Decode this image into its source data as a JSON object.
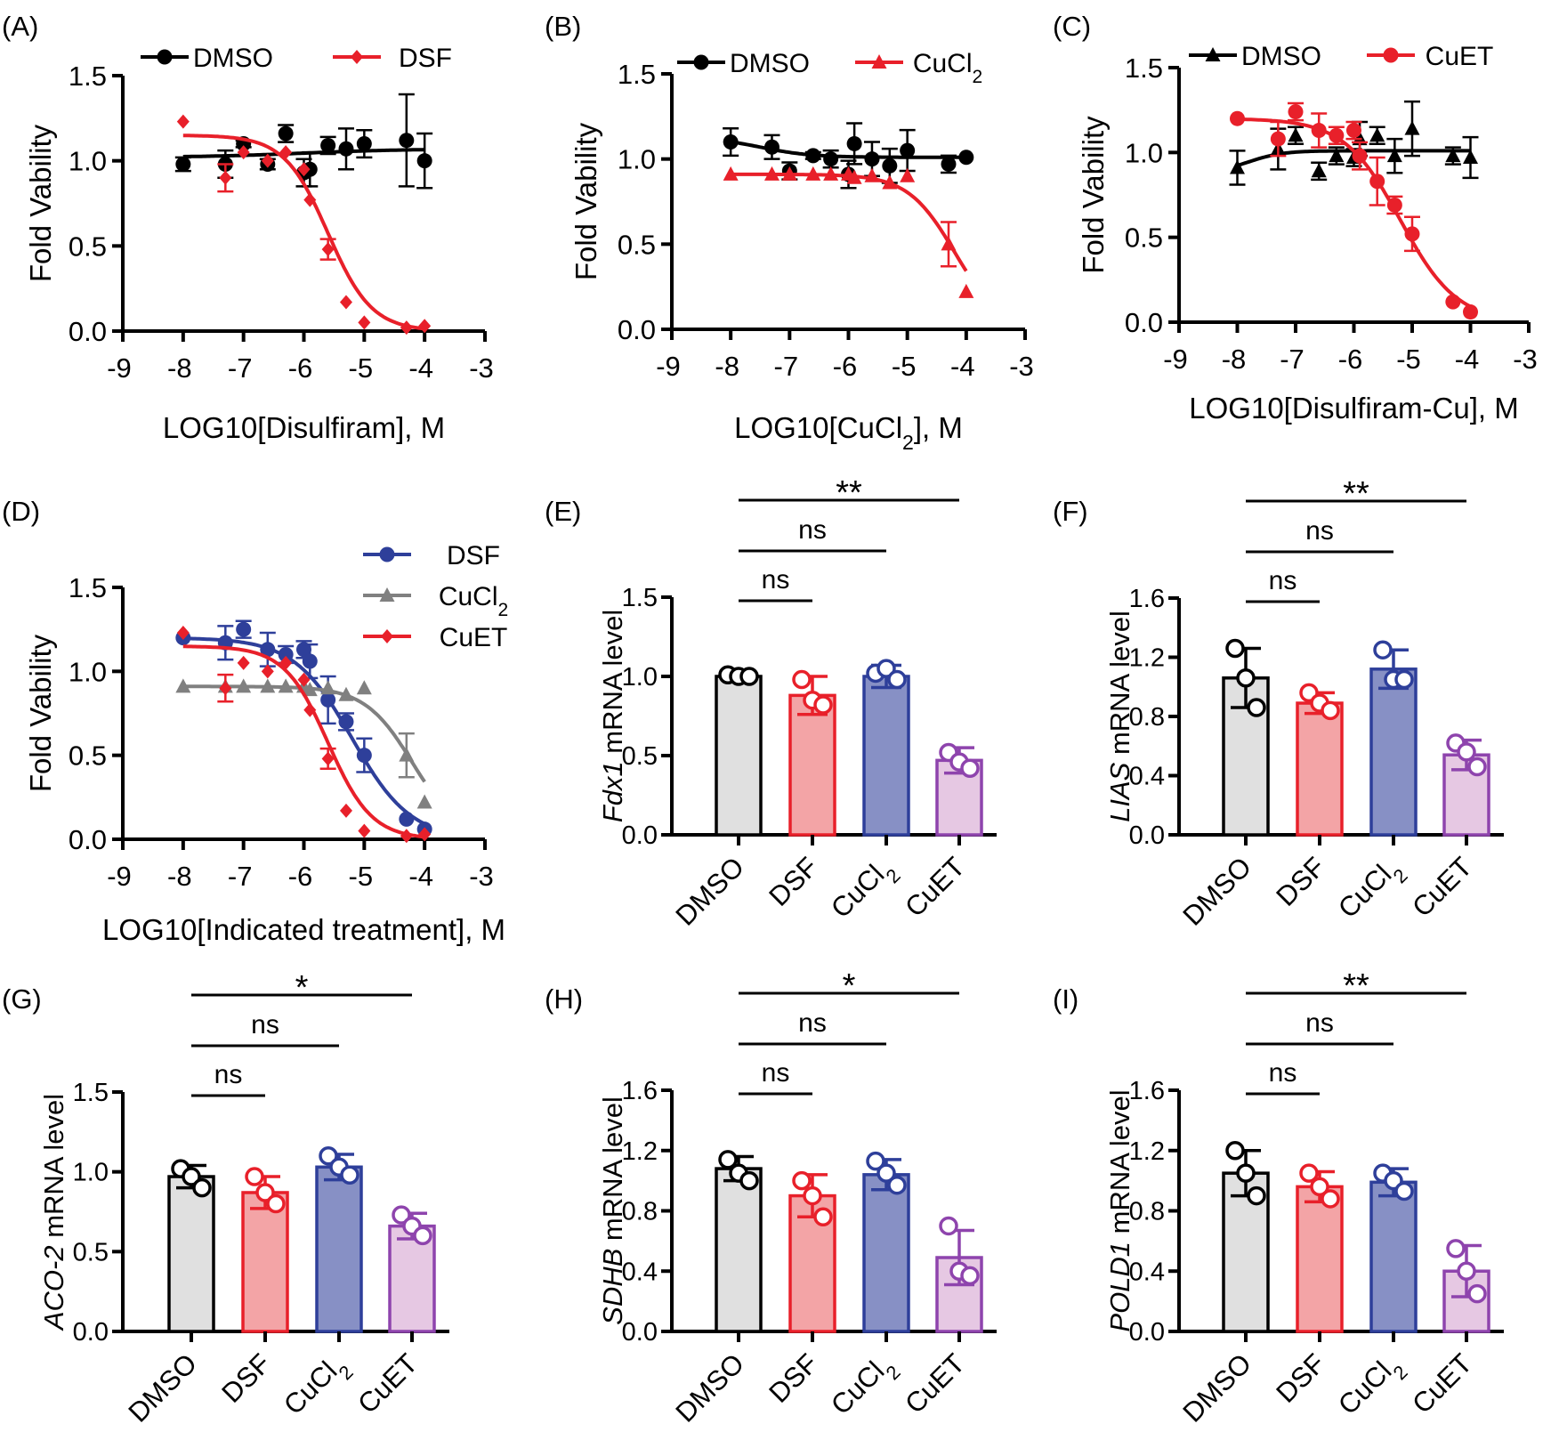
{
  "colors": {
    "black": "#000000",
    "red": "#e8202a",
    "blue": "#2e3f9a",
    "gray": "#808080",
    "purple": "#8e44ad"
  },
  "chart_data": [
    {
      "panel": "(A)",
      "type": "scatter",
      "xlabel": "LOG10[Disulfiram], M",
      "ylabel": "Fold Vability",
      "xlim": [
        -9,
        -3
      ],
      "ylim": [
        0,
        1.5
      ],
      "xticks": [
        "-9",
        "-8",
        "-7",
        "-6",
        "-5",
        "-4",
        "-3"
      ],
      "yticks": [
        "0.0",
        "0.5",
        "1.0",
        "1.5"
      ],
      "series": [
        {
          "name": "DMSO",
          "color": "black",
          "marker": "circle",
          "x": [
            -8,
            -7.3,
            -7,
            -6.6,
            -6.3,
            -6,
            -5.9,
            -5.6,
            -5.3,
            -5,
            -4.3,
            -4
          ],
          "y": [
            0.98,
            0.98,
            1.1,
            0.98,
            1.16,
            0.93,
            0.95,
            1.09,
            1.07,
            1.1,
            1.12,
            1.0
          ],
          "err": [
            0.04,
            0.08,
            0.02,
            0.03,
            0.05,
            0.08,
            0.1,
            0.05,
            0.12,
            0.08,
            0.27,
            0.16
          ],
          "fit": {
            "top": 1.02,
            "bottom": 1.07,
            "ec50": -6,
            "hill": 0.5
          }
        },
        {
          "name": "DSF",
          "color": "red",
          "marker": "diamond",
          "x": [
            -8,
            -7.3,
            -7,
            -6.6,
            -6.3,
            -6,
            -5.9,
            -5.6,
            -5.3,
            -5,
            -4.3,
            -4
          ],
          "y": [
            1.23,
            0.9,
            1.05,
            1.0,
            1.05,
            0.95,
            0.77,
            0.48,
            0.17,
            0.05,
            0.02,
            0.03
          ],
          "err": [
            0,
            0.08,
            0,
            0,
            0,
            0,
            0,
            0.06,
            0,
            0,
            0,
            0
          ],
          "fit": {
            "top": 1.15,
            "bottom": 0,
            "ec50": -5.6,
            "hill": 1.2
          }
        }
      ]
    },
    {
      "panel": "(B)",
      "type": "scatter",
      "xlabel": "LOG10[CuCl₂], M",
      "ylabel": "Fold Vability",
      "xlim": [
        -9,
        -3
      ],
      "ylim": [
        0,
        1.5
      ],
      "xticks": [
        "-9",
        "-8",
        "-7",
        "-6",
        "-5",
        "-4",
        "-3"
      ],
      "yticks": [
        "0.0",
        "0.5",
        "1.0",
        "1.5"
      ],
      "series": [
        {
          "name": "DMSO",
          "color": "black",
          "marker": "circle",
          "x": [
            -8,
            -7.3,
            -7,
            -6.6,
            -6.3,
            -6,
            -5.9,
            -5.6,
            -5.3,
            -5,
            -4.3,
            -4
          ],
          "y": [
            1.1,
            1.07,
            0.93,
            1.02,
            1.0,
            0.91,
            1.09,
            1.0,
            0.96,
            1.05,
            0.97,
            1.01
          ],
          "err": [
            0.08,
            0.07,
            0.05,
            0.02,
            0.05,
            0.08,
            0.12,
            0.1,
            0.1,
            0.12,
            0.05,
            0
          ],
          "fit": {
            "top": 1.13,
            "bottom": 1.01,
            "ec50": -7.5,
            "hill": 1.0
          }
        },
        {
          "name": "CuCl₂",
          "color": "red",
          "marker": "triangle",
          "x": [
            -8,
            -7.3,
            -7,
            -6.6,
            -6.3,
            -6,
            -5.9,
            -5.6,
            -5.3,
            -5,
            -4.3,
            -4
          ],
          "y": [
            0.91,
            0.91,
            0.91,
            0.91,
            0.91,
            0.91,
            0.89,
            0.9,
            0.86,
            0.9,
            0.5,
            0.22
          ],
          "err": [
            0,
            0,
            0,
            0,
            0,
            0,
            0,
            0,
            0,
            0,
            0.13,
            0
          ],
          "fit": {
            "top": 0.91,
            "bottom": 0,
            "ec50": -4.2,
            "hill": 1.1
          }
        }
      ]
    },
    {
      "panel": "(C)",
      "type": "scatter",
      "xlabel": "LOG10[Disulfiram-Cu], M",
      "ylabel": "Fold Vability",
      "xlim": [
        -9,
        -3
      ],
      "ylim": [
        0,
        1.5
      ],
      "xticks": [
        "-9",
        "-8",
        "-7",
        "-6",
        "-5",
        "-4",
        "-3"
      ],
      "yticks": [
        "0.0",
        "0.5",
        "1.0",
        "1.5"
      ],
      "series": [
        {
          "name": "DMSO",
          "color": "black",
          "marker": "triangle",
          "x": [
            -8,
            -7.3,
            -7,
            -6.6,
            -6.3,
            -6,
            -5.9,
            -5.6,
            -5.3,
            -5,
            -4.3,
            -4
          ],
          "y": [
            0.91,
            1.02,
            1.1,
            0.89,
            0.98,
            0.97,
            1.08,
            1.1,
            0.98,
            1.14,
            0.98,
            0.97
          ],
          "err": [
            0.1,
            0.12,
            0.05,
            0.05,
            0.05,
            0.05,
            0.1,
            0.05,
            0.1,
            0.16,
            0.05,
            0.12
          ],
          "fit": {
            "top": 0.88,
            "bottom": 1.01,
            "ec50": -7.8,
            "hill": 1.5
          }
        },
        {
          "name": "CuET",
          "color": "red",
          "marker": "circle",
          "x": [
            -8,
            -7.3,
            -7,
            -6.6,
            -6.3,
            -6,
            -5.9,
            -5.6,
            -5.3,
            -5,
            -4.3,
            -4
          ],
          "y": [
            1.2,
            1.08,
            1.24,
            1.13,
            1.1,
            1.13,
            0.98,
            0.83,
            0.69,
            0.52,
            0.12,
            0.06
          ],
          "err": [
            0,
            0.1,
            0.05,
            0.1,
            0.05,
            0.05,
            0.08,
            0.14,
            0.05,
            0.1,
            0,
            0
          ],
          "fit": {
            "top": 1.2,
            "bottom": 0,
            "ec50": -5.2,
            "hill": 0.9
          }
        }
      ]
    },
    {
      "panel": "(D)",
      "type": "scatter",
      "xlabel": "LOG10[Indicated treatment], M",
      "ylabel": "Fold Vability",
      "xlim": [
        -9,
        -3
      ],
      "ylim": [
        0,
        1.5
      ],
      "xticks": [
        "-9",
        "-8",
        "-7",
        "-6",
        "-5",
        "-4",
        "-3"
      ],
      "yticks": [
        "0.0",
        "0.5",
        "1.0",
        "1.5"
      ],
      "series": [
        {
          "name": "DSF",
          "color": "blue",
          "marker": "circle",
          "x": [
            -8,
            -7.3,
            -7,
            -6.6,
            -6.3,
            -6,
            -5.9,
            -5.6,
            -5.3,
            -5,
            -4.3,
            -4
          ],
          "y": [
            1.2,
            1.17,
            1.25,
            1.13,
            1.1,
            1.13,
            1.06,
            0.83,
            0.7,
            0.5,
            0.12,
            0.06
          ],
          "err": [
            0,
            0.1,
            0.05,
            0.1,
            0.05,
            0.05,
            0.1,
            0.14,
            0.05,
            0.1,
            0,
            0
          ],
          "fit": {
            "top": 1.2,
            "bottom": 0,
            "ec50": -5.2,
            "hill": 0.9
          }
        },
        {
          "name": "CuCl₂",
          "color": "gray",
          "marker": "triangle",
          "x": [
            -8,
            -7.3,
            -7,
            -6.6,
            -6.3,
            -6,
            -5.9,
            -5.6,
            -5.3,
            -5,
            -4.3,
            -4
          ],
          "y": [
            0.91,
            0.91,
            0.91,
            0.91,
            0.91,
            0.91,
            0.89,
            0.9,
            0.86,
            0.9,
            0.5,
            0.22
          ],
          "err": [
            0,
            0,
            0,
            0,
            0,
            0,
            0,
            0,
            0,
            0,
            0.13,
            0
          ],
          "fit": {
            "top": 0.91,
            "bottom": 0,
            "ec50": -4.2,
            "hill": 1.1
          }
        },
        {
          "name": "CuET",
          "color": "red",
          "marker": "diamond",
          "x": [
            -8,
            -7.3,
            -7,
            -6.6,
            -6.3,
            -6,
            -5.9,
            -5.6,
            -5.3,
            -5,
            -4.3,
            -4
          ],
          "y": [
            1.23,
            0.9,
            1.05,
            1.0,
            1.05,
            0.95,
            0.77,
            0.48,
            0.17,
            0.05,
            0.02,
            0.03
          ],
          "err": [
            0,
            0.08,
            0,
            0,
            0,
            0,
            0,
            0.06,
            0,
            0,
            0,
            0
          ],
          "fit": {
            "top": 1.15,
            "bottom": 0,
            "ec50": -5.6,
            "hill": 1.2
          }
        }
      ]
    },
    {
      "panel": "(E)",
      "type": "bar",
      "ylabel_gene": "Fdx1",
      "ylabel_rest": " mRNA level",
      "categories": [
        "DMSO",
        "DSF",
        "CuCl₂",
        "CuET"
      ],
      "values": [
        1.0,
        0.88,
        1.0,
        0.47
      ],
      "err": [
        0.01,
        0.12,
        0.07,
        0.08
      ],
      "points": [
        [
          1.01,
          1.0,
          1.0
        ],
        [
          0.98,
          0.85,
          0.82
        ],
        [
          1.02,
          1.05,
          0.98
        ],
        [
          0.52,
          0.46,
          0.42
        ]
      ],
      "ylim": [
        0,
        1.5
      ],
      "yticks": [
        "0.0",
        "0.5",
        "1.0",
        "1.5"
      ],
      "sig": [
        {
          "to": 1,
          "label": "ns"
        },
        {
          "to": 2,
          "label": "ns"
        },
        {
          "to": 3,
          "label": "**"
        }
      ]
    },
    {
      "panel": "(F)",
      "type": "bar",
      "ylabel_gene": "LIAS",
      "ylabel_rest": " mRNA level",
      "categories": [
        "DMSO",
        "DSF",
        "CuCl₂",
        "CuET"
      ],
      "values": [
        1.06,
        0.89,
        1.12,
        0.54
      ],
      "err": [
        0.2,
        0.07,
        0.13,
        0.1
      ],
      "points": [
        [
          1.26,
          1.06,
          0.86
        ],
        [
          0.96,
          0.89,
          0.84
        ],
        [
          1.25,
          1.05,
          1.05
        ],
        [
          0.62,
          0.56,
          0.46
        ]
      ],
      "ylim": [
        0,
        1.6
      ],
      "yticks": [
        "0.0",
        "0.4",
        "0.8",
        "1.2",
        "1.6"
      ],
      "sig": [
        {
          "to": 1,
          "label": "ns"
        },
        {
          "to": 2,
          "label": "ns"
        },
        {
          "to": 3,
          "label": "**"
        }
      ]
    },
    {
      "panel": "(G)",
      "type": "bar",
      "ylabel_gene": "ACO-2",
      "ylabel_rest": " mRNA level",
      "categories": [
        "DMSO",
        "DSF",
        "CuCl₂",
        "CuET"
      ],
      "values": [
        0.97,
        0.87,
        1.03,
        0.66
      ],
      "err": [
        0.07,
        0.1,
        0.08,
        0.08
      ],
      "points": [
        [
          1.02,
          0.97,
          0.9
        ],
        [
          0.97,
          0.87,
          0.8
        ],
        [
          1.1,
          1.03,
          0.98
        ],
        [
          0.73,
          0.66,
          0.6
        ]
      ],
      "ylim": [
        0,
        1.5
      ],
      "yticks": [
        "0.0",
        "0.5",
        "1.0",
        "1.5"
      ],
      "sig": [
        {
          "to": 1,
          "label": "ns"
        },
        {
          "to": 2,
          "label": "ns"
        },
        {
          "to": 3,
          "label": "*"
        }
      ]
    },
    {
      "panel": "(H)",
      "type": "bar",
      "ylabel_gene": "SDHB",
      "ylabel_rest": " mRNA level",
      "categories": [
        "DMSO",
        "DSF",
        "CuCl₂",
        "CuET"
      ],
      "values": [
        1.08,
        0.9,
        1.04,
        0.49
      ],
      "err": [
        0.08,
        0.14,
        0.1,
        0.18
      ],
      "points": [
        [
          1.14,
          1.05,
          1.0
        ],
        [
          1.0,
          0.9,
          0.76
        ],
        [
          1.13,
          1.05,
          0.97
        ],
        [
          0.7,
          0.4,
          0.37
        ]
      ],
      "ylim": [
        0,
        1.6
      ],
      "yticks": [
        "0.0",
        "0.4",
        "0.8",
        "1.2",
        "1.6"
      ],
      "sig": [
        {
          "to": 1,
          "label": "ns"
        },
        {
          "to": 2,
          "label": "ns"
        },
        {
          "to": 3,
          "label": "*"
        }
      ]
    },
    {
      "panel": "(I)",
      "type": "bar",
      "ylabel_gene": "POLD1",
      "ylabel_rest": " mRNA level",
      "categories": [
        "DMSO",
        "DSF",
        "CuCl₂",
        "CuET"
      ],
      "values": [
        1.05,
        0.96,
        0.99,
        0.4
      ],
      "err": [
        0.15,
        0.1,
        0.09,
        0.17
      ],
      "points": [
        [
          1.2,
          1.05,
          0.9
        ],
        [
          1.05,
          0.96,
          0.88
        ],
        [
          1.05,
          1.0,
          0.93
        ],
        [
          0.55,
          0.4,
          0.25
        ]
      ],
      "ylim": [
        0,
        1.6
      ],
      "yticks": [
        "0.0",
        "0.4",
        "0.8",
        "1.2",
        "1.6"
      ],
      "sig": [
        {
          "to": 1,
          "label": "ns"
        },
        {
          "to": 2,
          "label": "ns"
        },
        {
          "to": 3,
          "label": "**"
        }
      ]
    }
  ]
}
